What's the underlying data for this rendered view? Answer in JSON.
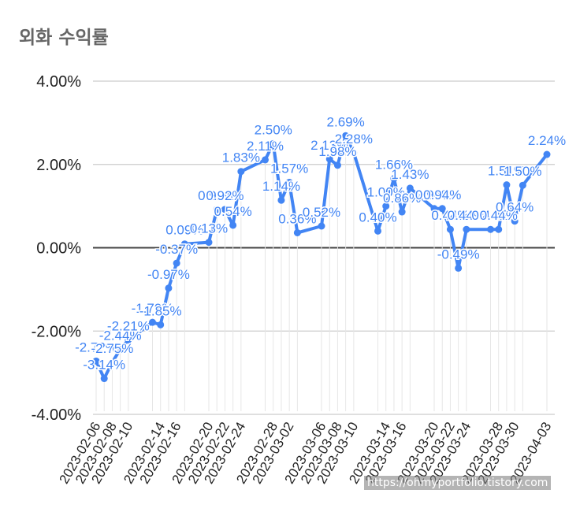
{
  "chart_data": {
    "type": "line",
    "title": "외화 수익률",
    "ylim": [
      -4,
      4
    ],
    "y_ticks": [
      "4.00%",
      "2.00%",
      "0.00%",
      "-2.00%",
      "-4.00%"
    ],
    "y_tick_values": [
      4,
      2,
      0,
      -2,
      -4
    ],
    "x_tick_labels": [
      "2023-02-06",
      "2023-02-08",
      "2023-02-10",
      "2023-02-14",
      "2023-02-16",
      "2023-02-20",
      "2023-02-22",
      "2023-02-24",
      "2023-02-28",
      "2023-03-02",
      "2023-03-06",
      "2023-03-08",
      "2023-03-10",
      "2023-03-14",
      "2023-03-16",
      "2023-03-20",
      "2023-03-22",
      "2023-03-24",
      "2023-03-28",
      "2023-03-30",
      "2023-04-03"
    ],
    "grid": true,
    "legend": "none",
    "series": [
      {
        "color": "#4285f4",
        "points": [
          {
            "x": "2023-02-06",
            "y": -2.72,
            "label": "-2.72%"
          },
          {
            "x": "2023-02-07",
            "y": -3.14,
            "label": "-3.14%"
          },
          {
            "x": "2023-02-08",
            "y": -2.75,
            "label": "-2.75%"
          },
          {
            "x": "2023-02-09",
            "y": -2.44,
            "label": "-2.44%"
          },
          {
            "x": "2023-02-10",
            "y": -2.21,
            "label": "-2.21%"
          },
          {
            "x": "2023-02-13",
            "y": -1.79,
            "label": "-1.79%"
          },
          {
            "x": "2023-02-14",
            "y": -1.85,
            "label": "-1.85%"
          },
          {
            "x": "2023-02-15",
            "y": -0.97,
            "label": "-0.97%"
          },
          {
            "x": "2023-02-16",
            "y": -0.37,
            "label": "-0.37%"
          },
          {
            "x": "2023-02-17",
            "y": 0.09,
            "label": "0.09%"
          },
          {
            "x": "2023-02-20",
            "y": 0.13,
            "label": "0.13%"
          },
          {
            "x": "2023-02-21",
            "y": 0.92,
            "label": "0.92%"
          },
          {
            "x": "2023-02-22",
            "y": 0.92,
            "label": "0.92%"
          },
          {
            "x": "2023-02-23",
            "y": 0.54,
            "label": "0.54%"
          },
          {
            "x": "2023-02-24",
            "y": 1.83,
            "label": "1.83%"
          },
          {
            "x": "2023-02-27",
            "y": 2.11,
            "label": "2.11%"
          },
          {
            "x": "2023-02-28",
            "y": 2.5,
            "label": "2.50%"
          },
          {
            "x": "2023-03-01",
            "y": 1.14,
            "label": "1.14%"
          },
          {
            "x": "2023-03-02",
            "y": 1.57,
            "label": "1.57%"
          },
          {
            "x": "2023-03-03",
            "y": 0.36,
            "label": "0.36%"
          },
          {
            "x": "2023-03-06",
            "y": 0.52,
            "label": "0.52%"
          },
          {
            "x": "2023-03-07",
            "y": 2.13,
            "label": "2.13%"
          },
          {
            "x": "2023-03-08",
            "y": 1.98,
            "label": "1.98%"
          },
          {
            "x": "2023-03-09",
            "y": 2.69,
            "label": "2.69%"
          },
          {
            "x": "2023-03-10",
            "y": 2.28,
            "label": "2.28%"
          },
          {
            "x": "2023-03-13",
            "y": 0.4,
            "label": "0.40%"
          },
          {
            "x": "2023-03-14",
            "y": 1.0,
            "label": "1.00%"
          },
          {
            "x": "2023-03-15",
            "y": 1.66,
            "label": "1.66%"
          },
          {
            "x": "2023-03-16",
            "y": 0.86,
            "label": "0.86%"
          },
          {
            "x": "2023-03-17",
            "y": 1.43,
            "label": "1.43%"
          },
          {
            "x": "2023-03-20",
            "y": 0.94,
            "label": "0.94%"
          },
          {
            "x": "2023-03-21",
            "y": 0.94,
            "label": "0.94%"
          },
          {
            "x": "2023-03-22",
            "y": 0.44,
            "label": "0.44%"
          },
          {
            "x": "2023-03-23",
            "y": -0.49,
            "label": "-0.49%"
          },
          {
            "x": "2023-03-24",
            "y": 0.44,
            "label": "0.44%"
          },
          {
            "x": "2023-03-27",
            "y": 0.44,
            "label": "0.44%"
          },
          {
            "x": "2023-03-28",
            "y": 0.44,
            "label": "0.44%"
          },
          {
            "x": "2023-03-29",
            "y": 1.51,
            "label": "1.51%"
          },
          {
            "x": "2023-03-30",
            "y": 0.64,
            "label": "0.64%"
          },
          {
            "x": "2023-03-31",
            "y": 1.5,
            "label": "1.50%"
          },
          {
            "x": "2023-04-03",
            "y": 2.24,
            "label": "2.24%"
          }
        ]
      }
    ]
  },
  "watermark": "https://ohmyportfolio.tistory.com"
}
